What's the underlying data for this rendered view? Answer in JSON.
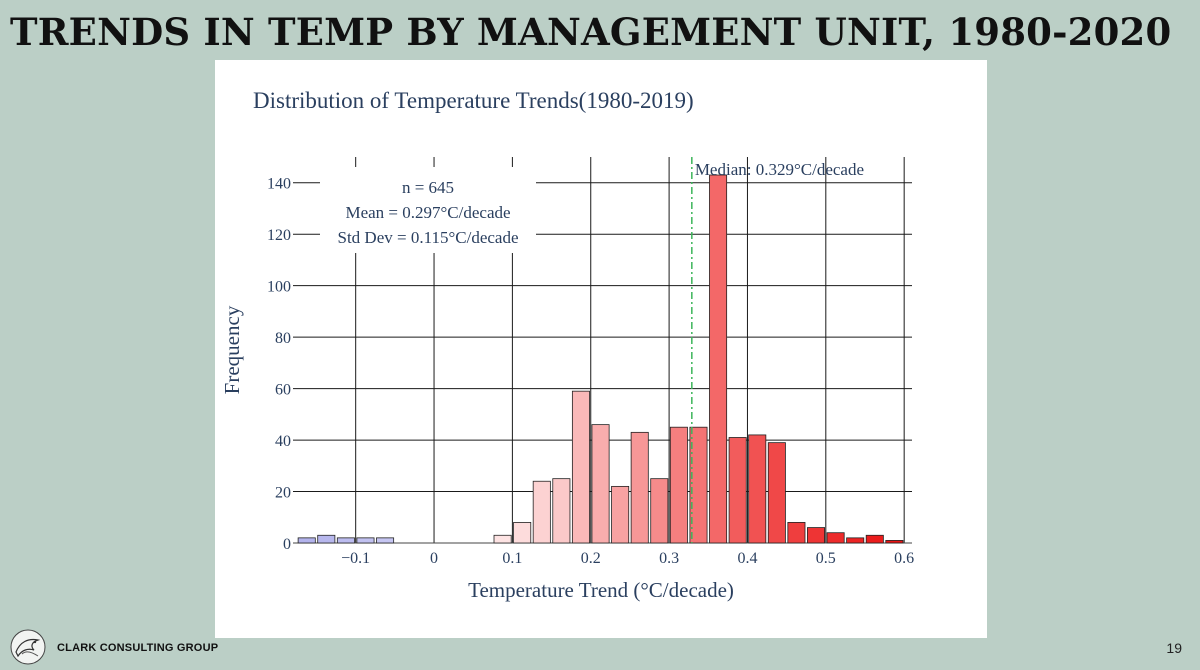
{
  "slide": {
    "title": "TRENDS IN TEMP BY MANAGEMENT UNIT, 1980-2020",
    "company": "CLARK CONSULTING GROUP",
    "page_number": "19",
    "logo": "bird-sketch-logo"
  },
  "chart_data": {
    "type": "bar",
    "title": "Distribution of Temperature Trends(1980-2019)",
    "xlabel": "Temperature Trend (°C/decade)",
    "ylabel": "Frequency",
    "xlim": [
      -0.18,
      0.61
    ],
    "ylim": [
      0,
      150
    ],
    "bin_width": 0.025,
    "x_ticks": [
      {
        "value": -0.1,
        "label": "−0.1"
      },
      {
        "value": 0,
        "label": "0"
      },
      {
        "value": 0.1,
        "label": "0.1"
      },
      {
        "value": 0.2,
        "label": "0.2"
      },
      {
        "value": 0.3,
        "label": "0.3"
      },
      {
        "value": 0.4,
        "label": "0.4"
      },
      {
        "value": 0.5,
        "label": "0.5"
      },
      {
        "value": 0.6,
        "label": "0.6"
      }
    ],
    "y_ticks": [
      {
        "value": 0,
        "label": "0"
      },
      {
        "value": 20,
        "label": "20"
      },
      {
        "value": 40,
        "label": "40"
      },
      {
        "value": 60,
        "label": "60"
      },
      {
        "value": 80,
        "label": "80"
      },
      {
        "value": 100,
        "label": "100"
      },
      {
        "value": 120,
        "label": "120"
      },
      {
        "value": 140,
        "label": "140"
      }
    ],
    "grid": true,
    "bars": [
      {
        "x": -0.1625,
        "y": 2,
        "color": "#b3b3ec"
      },
      {
        "x": -0.1375,
        "y": 3,
        "color": "#b7b7ed"
      },
      {
        "x": -0.1125,
        "y": 2,
        "color": "#bcbcef"
      },
      {
        "x": -0.0875,
        "y": 2,
        "color": "#c1c1f0"
      },
      {
        "x": -0.0625,
        "y": 2,
        "color": "#c6c6f2"
      },
      {
        "x": -0.0375,
        "y": 0,
        "color": "#cfcff5"
      },
      {
        "x": -0.0125,
        "y": 0,
        "color": "#d8d8f8"
      },
      {
        "x": 0.0125,
        "y": 0,
        "color": "#e4e4fb"
      },
      {
        "x": 0.0375,
        "y": 0,
        "color": "#f0eef9"
      },
      {
        "x": 0.0625,
        "y": 0,
        "color": "#fbeeee"
      },
      {
        "x": 0.0875,
        "y": 3,
        "color": "#fde3e3"
      },
      {
        "x": 0.1125,
        "y": 8,
        "color": "#fddcdc"
      },
      {
        "x": 0.1375,
        "y": 24,
        "color": "#fcd2d2"
      },
      {
        "x": 0.1625,
        "y": 25,
        "color": "#fbc9c9"
      },
      {
        "x": 0.1875,
        "y": 59,
        "color": "#fab9b9"
      },
      {
        "x": 0.2125,
        "y": 46,
        "color": "#f9adad"
      },
      {
        "x": 0.2375,
        "y": 22,
        "color": "#f8a2a2"
      },
      {
        "x": 0.2625,
        "y": 43,
        "color": "#f79797"
      },
      {
        "x": 0.2875,
        "y": 25,
        "color": "#f68b8b"
      },
      {
        "x": 0.3125,
        "y": 45,
        "color": "#f57f7f"
      },
      {
        "x": 0.3375,
        "y": 45,
        "color": "#f47474"
      },
      {
        "x": 0.3625,
        "y": 143,
        "color": "#f36868"
      },
      {
        "x": 0.3875,
        "y": 41,
        "color": "#f25c5c"
      },
      {
        "x": 0.4125,
        "y": 42,
        "color": "#f15252"
      },
      {
        "x": 0.4375,
        "y": 39,
        "color": "#f04848"
      },
      {
        "x": 0.4625,
        "y": 8,
        "color": "#ef3e3e"
      },
      {
        "x": 0.4875,
        "y": 6,
        "color": "#ee3434"
      },
      {
        "x": 0.5125,
        "y": 4,
        "color": "#ed2b2b"
      },
      {
        "x": 0.5375,
        "y": 2,
        "color": "#ec2323"
      },
      {
        "x": 0.5625,
        "y": 3,
        "color": "#eb1c1c"
      },
      {
        "x": 0.5875,
        "y": 1,
        "color": "#ea1414"
      }
    ],
    "median": {
      "value": 0.329,
      "label": "Median: 0.329°C/decade",
      "color": "#3cb55a"
    },
    "stats_box": [
      "n = 645",
      "Mean = 0.297°C/decade",
      "Std Dev = 0.115°C/decade"
    ]
  }
}
